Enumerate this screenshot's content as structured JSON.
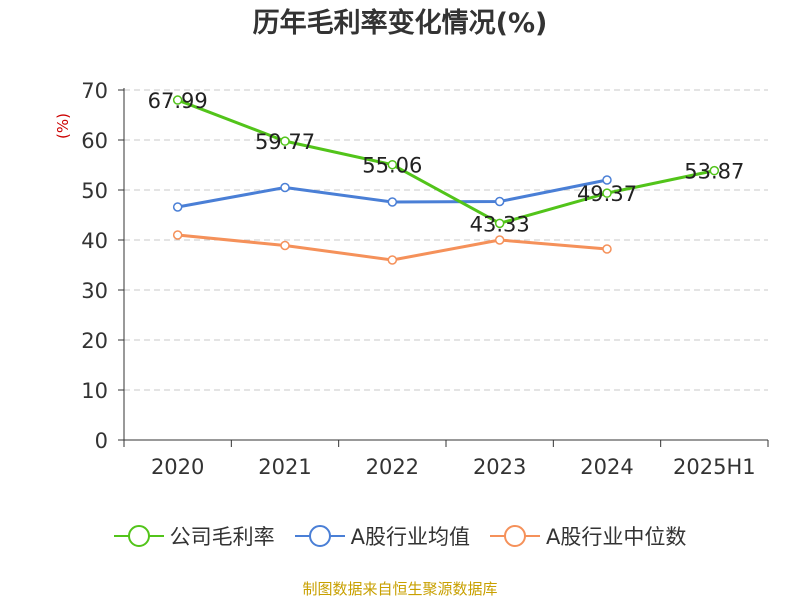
{
  "chart_data": {
    "type": "line",
    "title": "历年毛利率变化情况(%)",
    "ylabel": "(%)",
    "xlabel": "",
    "categories": [
      "2020",
      "2021",
      "2022",
      "2023",
      "2024",
      "2025H1"
    ],
    "ylim": [
      0,
      70
    ],
    "yticks": [
      0,
      10,
      20,
      30,
      40,
      50,
      60,
      70
    ],
    "grid": true,
    "legend_position": "bottom",
    "series": [
      {
        "name": "公司毛利率",
        "color": "#52c41a",
        "values": [
          67.99,
          59.77,
          55.06,
          43.33,
          49.37,
          53.87
        ],
        "data_labels": [
          "67.99",
          "59.77",
          "55.06",
          "43.33",
          "49.37",
          "53.87"
        ]
      },
      {
        "name": "A股行业均值",
        "color": "#4a7fd6",
        "values": [
          46.6,
          50.5,
          47.6,
          47.7,
          52.0,
          null
        ]
      },
      {
        "name": "A股行业中位数",
        "color": "#f5915a",
        "values": [
          41.0,
          38.9,
          36.0,
          40.0,
          38.2,
          null
        ]
      }
    ]
  },
  "source": "制图数据来自恒生聚源数据库"
}
